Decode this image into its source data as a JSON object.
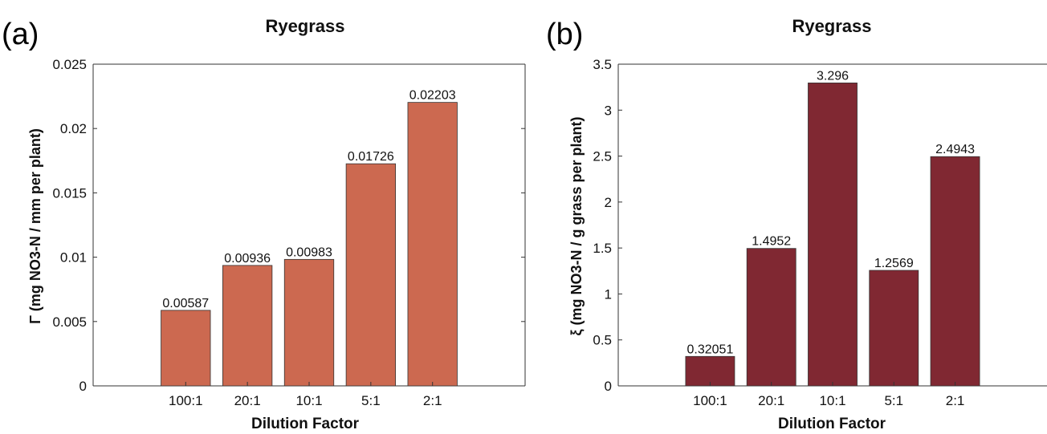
{
  "chart_data": [
    {
      "type": "bar",
      "panel_label": "(a)",
      "title": "Ryegrass",
      "xlabel": "Dilution Factor",
      "ylabel": "Γ (mg NO3-N / mm per plant)",
      "categories": [
        "100:1",
        "20:1",
        "10:1",
        "5:1",
        "2:1"
      ],
      "values": [
        0.00587,
        0.00936,
        0.00983,
        0.01726,
        0.02203
      ],
      "data_labels": [
        "0.00587",
        "0.00936",
        "0.00983",
        "0.01726",
        "0.02203"
      ],
      "ylim": [
        0,
        0.025
      ],
      "yticks": [
        0,
        0.005,
        0.01,
        0.015,
        0.02,
        0.025
      ],
      "ytick_labels": [
        "0",
        "0.005",
        "0.01",
        "0.015",
        "0.02",
        "0.025"
      ],
      "color": "#cc6950",
      "grid": false
    },
    {
      "type": "bar",
      "panel_label": "(b)",
      "title": "Ryegrass",
      "xlabel": "Dilution Factor",
      "ylabel": "ξ (mg NO3-N / g grass per plant)",
      "categories": [
        "100:1",
        "20:1",
        "10:1",
        "5:1",
        "2:1"
      ],
      "values": [
        0.32051,
        1.4952,
        3.296,
        1.2569,
        2.4943
      ],
      "data_labels": [
        "0.32051",
        "1.4952",
        "3.296",
        "1.2569",
        "2.4943"
      ],
      "ylim": [
        0,
        3.5
      ],
      "yticks": [
        0,
        0.5,
        1,
        1.5,
        2,
        2.5,
        3,
        3.5
      ],
      "ytick_labels": [
        "0",
        "0.5",
        "1",
        "1.5",
        "2",
        "2.5",
        "3",
        "3.5"
      ],
      "color": "#802832",
      "grid": false
    }
  ]
}
